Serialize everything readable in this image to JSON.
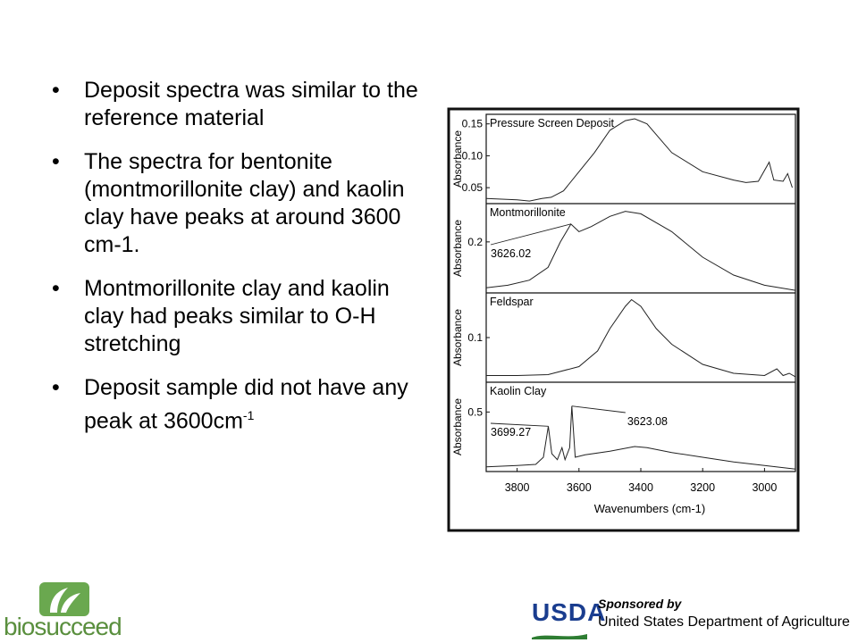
{
  "slide": {
    "bullets": [
      {
        "text": "Deposit spectra was similar  to the reference material"
      },
      {
        "text": "The spectra for bentonite (montmorillonite clay) and kaolin clay have peaks at around 3600 cm-1."
      },
      {
        "text": "Montmorillonite clay and kaolin clay had peaks similar to O-H stretching"
      },
      {
        "text": "Deposit sample did not have any peak at 3600cm",
        "sup": "-1"
      }
    ],
    "bullet_glyph": "•",
    "footer": {
      "left_logo_text": "biosucceed",
      "left_logo_icon": "sprout-icon",
      "usda_abbrev": "USDA",
      "sponsored_by": "Sponsored by",
      "usda_full": "United States Department of Agriculture"
    }
  },
  "chart_data": {
    "type": "line",
    "xlabel": "Wavenumbers (cm-1)",
    "ylabel": "Absorbance",
    "x_ticks": [
      3800,
      3600,
      3400,
      3200,
      3000
    ],
    "xlim": [
      3900,
      2900
    ],
    "panels": [
      {
        "name": "Pressure Screen Deposit",
        "y_ticks": [
          "0.15",
          "0.10",
          "0.05"
        ],
        "y_tick_values": [
          0.15,
          0.1,
          0.05
        ],
        "ylim": [
          0.025,
          0.165
        ],
        "annotations": [],
        "points": [
          [
            3900,
            0.033
          ],
          [
            3850,
            0.032
          ],
          [
            3800,
            0.031
          ],
          [
            3760,
            0.029
          ],
          [
            3720,
            0.033
          ],
          [
            3690,
            0.035
          ],
          [
            3650,
            0.045
          ],
          [
            3600,
            0.075
          ],
          [
            3550,
            0.105
          ],
          [
            3500,
            0.14
          ],
          [
            3450,
            0.155
          ],
          [
            3420,
            0.158
          ],
          [
            3380,
            0.15
          ],
          [
            3300,
            0.105
          ],
          [
            3200,
            0.075
          ],
          [
            3100,
            0.062
          ],
          [
            3060,
            0.058
          ],
          [
            3020,
            0.06
          ],
          [
            2985,
            0.09
          ],
          [
            2970,
            0.062
          ],
          [
            2940,
            0.06
          ],
          [
            2925,
            0.072
          ],
          [
            2910,
            0.05
          ]
        ]
      },
      {
        "name": "Montmorillonite",
        "y_ticks": [
          "0.2"
        ],
        "y_tick_values": [
          0.2
        ],
        "ylim": [
          0,
          0.35
        ],
        "annotations": [
          {
            "text": "3626.02",
            "x": 3626.02
          }
        ],
        "points": [
          [
            3900,
            0.02
          ],
          [
            3830,
            0.03
          ],
          [
            3760,
            0.05
          ],
          [
            3700,
            0.1
          ],
          [
            3660,
            0.2
          ],
          [
            3626,
            0.27
          ],
          [
            3600,
            0.24
          ],
          [
            3560,
            0.26
          ],
          [
            3500,
            0.3
          ],
          [
            3450,
            0.32
          ],
          [
            3400,
            0.31
          ],
          [
            3300,
            0.24
          ],
          [
            3200,
            0.14
          ],
          [
            3100,
            0.07
          ],
          [
            3000,
            0.03
          ],
          [
            2900,
            0.01
          ]
        ]
      },
      {
        "name": "Feldspar",
        "y_ticks": [
          "0.1"
        ],
        "y_tick_values": [
          0.1
        ],
        "ylim": [
          0,
          0.2
        ],
        "annotations": [],
        "points": [
          [
            3900,
            0.015
          ],
          [
            3800,
            0.015
          ],
          [
            3700,
            0.017
          ],
          [
            3600,
            0.035
          ],
          [
            3540,
            0.07
          ],
          [
            3500,
            0.12
          ],
          [
            3450,
            0.17
          ],
          [
            3430,
            0.185
          ],
          [
            3400,
            0.17
          ],
          [
            3350,
            0.12
          ],
          [
            3300,
            0.085
          ],
          [
            3200,
            0.04
          ],
          [
            3100,
            0.02
          ],
          [
            3000,
            0.015
          ],
          [
            2960,
            0.03
          ],
          [
            2940,
            0.015
          ],
          [
            2920,
            0.02
          ],
          [
            2900,
            0.012
          ]
        ]
      },
      {
        "name": "Kaolin Clay",
        "y_ticks": [
          "0.5"
        ],
        "y_tick_values": [
          0.5
        ],
        "ylim": [
          0,
          0.75
        ],
        "annotations": [
          {
            "text": "3699.27",
            "x": 3699.27
          },
          {
            "text": "3623.08",
            "x": 3623.08
          }
        ],
        "points": [
          [
            3900,
            0.04
          ],
          [
            3800,
            0.05
          ],
          [
            3740,
            0.06
          ],
          [
            3715,
            0.12
          ],
          [
            3699,
            0.38
          ],
          [
            3688,
            0.15
          ],
          [
            3670,
            0.1
          ],
          [
            3655,
            0.2
          ],
          [
            3645,
            0.1
          ],
          [
            3630,
            0.2
          ],
          [
            3623,
            0.55
          ],
          [
            3612,
            0.12
          ],
          [
            3580,
            0.14
          ],
          [
            3500,
            0.17
          ],
          [
            3420,
            0.21
          ],
          [
            3380,
            0.2
          ],
          [
            3300,
            0.16
          ],
          [
            3200,
            0.12
          ],
          [
            3100,
            0.08
          ],
          [
            3000,
            0.05
          ],
          [
            2900,
            0.02
          ]
        ]
      }
    ]
  }
}
